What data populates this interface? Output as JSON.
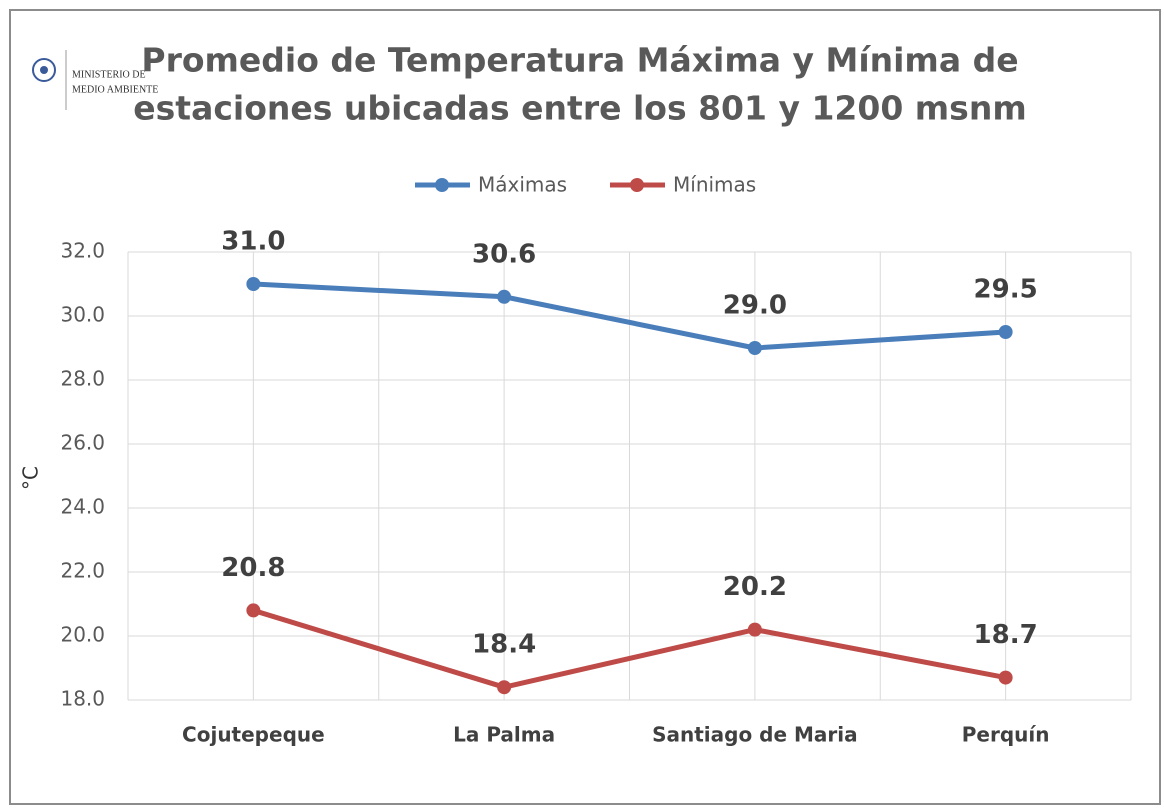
{
  "chart_data": {
    "type": "line",
    "title": [
      "Promedio de Temperatura Máxima y Mínima de",
      "estaciones ubicadas entre los 801 y 1200 msnm"
    ],
    "logo": [
      "MINISTERIO DE",
      "MEDIO AMBIENTE"
    ],
    "y_label": "°C",
    "categories": [
      "Cojutepeque",
      "La Palma",
      "Santiago de Maria",
      "Perquín"
    ],
    "series": [
      {
        "name": "Máximas",
        "color": "#4a7ebb",
        "values": [
          31.0,
          30.6,
          29.0,
          29.5
        ],
        "value_labels": [
          "31.0",
          "30.6",
          "29.0",
          "29.5"
        ]
      },
      {
        "name": "Mínimas",
        "color": "#be4b48",
        "values": [
          20.8,
          18.4,
          20.2,
          18.7
        ],
        "value_labels": [
          "20.8",
          "18.4",
          "20.2",
          "18.7"
        ]
      }
    ],
    "ylim": [
      18,
      32
    ],
    "yticks": [
      {
        "value": 18,
        "label": "18.0"
      },
      {
        "value": 20,
        "label": "20.0"
      },
      {
        "value": 22,
        "label": "22.0"
      },
      {
        "value": 24,
        "label": "24.0"
      },
      {
        "value": 26,
        "label": "26.0"
      },
      {
        "value": 28,
        "label": "28.0"
      },
      {
        "value": 30,
        "label": "30.0"
      },
      {
        "value": 32,
        "label": "32.0"
      }
    ],
    "grid": true,
    "legend": "top"
  }
}
